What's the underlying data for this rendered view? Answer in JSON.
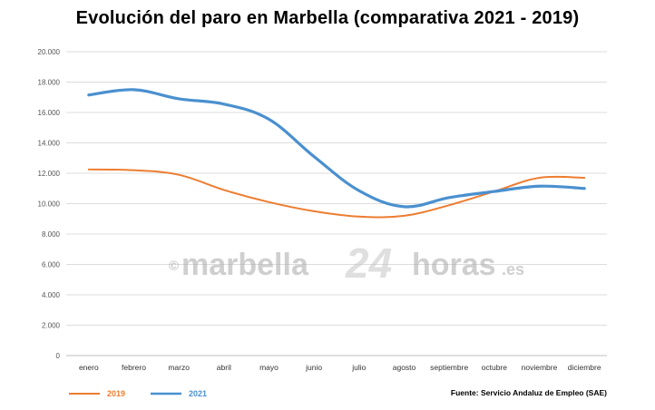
{
  "title": "Evolución del paro en Marbella (comparativa 2021 - 2019)",
  "source": "Fuente: Servicio Andaluz de Empleo (SAE)",
  "watermark": {
    "copyright": "©",
    "brand": "marbella",
    "num": "24",
    "word": "horas",
    "tld": ".es"
  },
  "chart_data": {
    "type": "line",
    "categories": [
      "enero",
      "febrero",
      "marzo",
      "abril",
      "mayo",
      "junio",
      "julio",
      "agosto",
      "septiembre",
      "octubre",
      "noviembre",
      "diciembre"
    ],
    "y_ticks": [
      "0",
      "2.000",
      "4.000",
      "6.000",
      "8.000",
      "10.000",
      "12.000",
      "14.000",
      "16.000",
      "18.000",
      "20.000"
    ],
    "ylim": [
      0,
      20000
    ],
    "grid": true,
    "legend_position": "bottom-left",
    "series": [
      {
        "name": "2019",
        "color": "#ed7d31",
        "values": [
          12250,
          12200,
          11900,
          10900,
          10100,
          9500,
          9150,
          9200,
          9900,
          10800,
          11700,
          11700
        ]
      },
      {
        "name": "2021",
        "color": "#4a90cf",
        "values": [
          17150,
          17500,
          16900,
          16550,
          15550,
          13100,
          10850,
          9800,
          10400,
          10800,
          11150,
          11000
        ]
      }
    ]
  }
}
